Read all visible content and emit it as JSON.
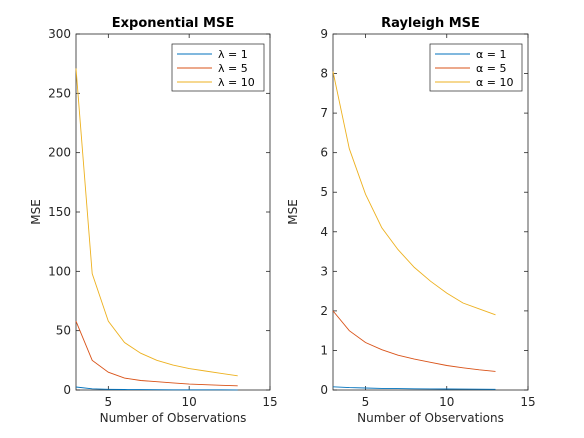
{
  "chart_data": [
    {
      "type": "line",
      "title": "Exponential MSE",
      "xlabel": "Number of Observations",
      "ylabel": "MSE",
      "xlim": [
        3,
        15
      ],
      "ylim": [
        0,
        300
      ],
      "xticks": [
        5,
        10,
        15
      ],
      "yticks": [
        0,
        50,
        100,
        150,
        200,
        250,
        300
      ],
      "grid": false,
      "legend": {
        "placement": "top-right"
      },
      "x": [
        3,
        4,
        5,
        6,
        7,
        8,
        9,
        10,
        11,
        12,
        13
      ],
      "series": [
        {
          "name": "λ = 1",
          "color": "#0072bd",
          "values": [
            2.5,
            1.0,
            0.6,
            0.4,
            0.3,
            0.25,
            0.2,
            0.18,
            0.16,
            0.14,
            0.12
          ]
        },
        {
          "name": "λ = 5",
          "color": "#d95319",
          "values": [
            58,
            25,
            15,
            10,
            8,
            7,
            6,
            5,
            4.5,
            4,
            3.5
          ]
        },
        {
          "name": "λ = 10",
          "color": "#edb120",
          "values": [
            271,
            98,
            58,
            40,
            31,
            25,
            21,
            18,
            16,
            14,
            12
          ]
        }
      ]
    },
    {
      "type": "line",
      "title": "Rayleigh MSE",
      "xlabel": "Number of Observations",
      "ylabel": "MSE",
      "xlim": [
        3,
        15
      ],
      "ylim": [
        0,
        9
      ],
      "xticks": [
        5,
        10,
        15
      ],
      "yticks": [
        0,
        1,
        2,
        3,
        4,
        5,
        6,
        7,
        8,
        9
      ],
      "grid": false,
      "legend": {
        "placement": "top-right"
      },
      "x": [
        3,
        4,
        5,
        6,
        7,
        8,
        9,
        10,
        11,
        12,
        13
      ],
      "series": [
        {
          "name": "α = 1",
          "color": "#0072bd",
          "values": [
            0.08,
            0.06,
            0.05,
            0.04,
            0.035,
            0.03,
            0.028,
            0.025,
            0.023,
            0.02,
            0.018
          ]
        },
        {
          "name": "α = 5",
          "color": "#d95319",
          "values": [
            2.0,
            1.5,
            1.2,
            1.02,
            0.88,
            0.78,
            0.7,
            0.62,
            0.56,
            0.51,
            0.47
          ]
        },
        {
          "name": "α = 10",
          "color": "#edb120",
          "values": [
            8.05,
            6.1,
            4.95,
            4.1,
            3.55,
            3.1,
            2.75,
            2.45,
            2.2,
            2.05,
            1.9
          ]
        }
      ]
    }
  ]
}
